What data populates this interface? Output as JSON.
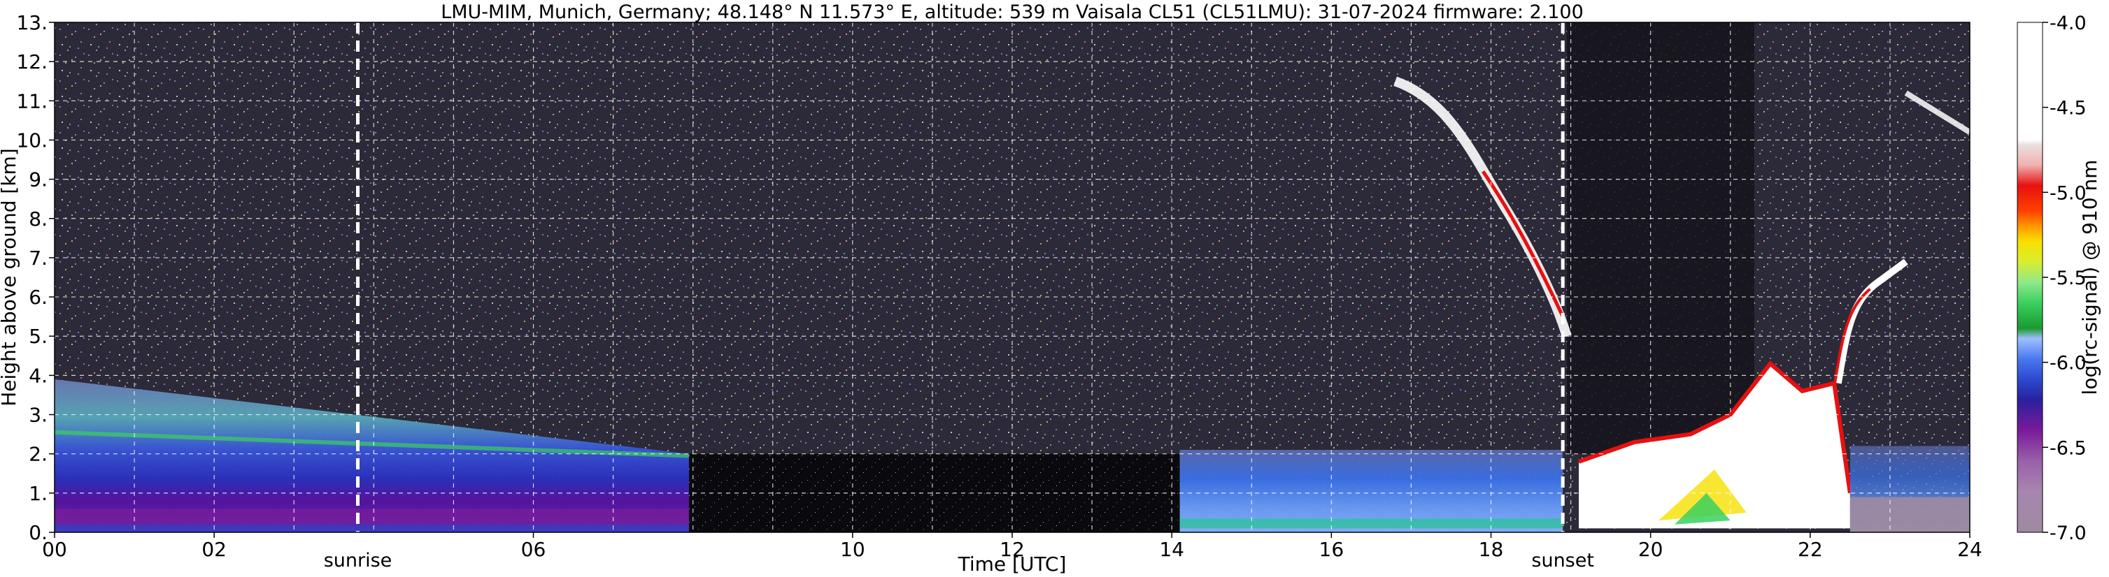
{
  "chart_data": {
    "type": "heatmap",
    "title": "LMU-MIM, Munich, Germany; 48.148° N 11.573° E, altitude: 539 m    Vaisala CL51 (CL51LMU): 31-07-2024    firmware: 2.100",
    "xlabel": "Time [UTC]",
    "ylabel": "Height above ground [km]",
    "xlim": [
      0,
      24
    ],
    "ylim": [
      0,
      13
    ],
    "grid": true,
    "x_ticks": [
      {
        "value": 0,
        "label": "00"
      },
      {
        "value": 2,
        "label": "02"
      },
      {
        "value": 6,
        "label": "06"
      },
      {
        "value": 10,
        "label": "10"
      },
      {
        "value": 12,
        "label": "12"
      },
      {
        "value": 14,
        "label": "14"
      },
      {
        "value": 16,
        "label": "16"
      },
      {
        "value": 18,
        "label": "18"
      },
      {
        "value": 20,
        "label": "20"
      },
      {
        "value": 22,
        "label": "22"
      },
      {
        "value": 24,
        "label": "24"
      }
    ],
    "y_ticks": [
      {
        "value": 0,
        "label": "0."
      },
      {
        "value": 1,
        "label": "1."
      },
      {
        "value": 2,
        "label": "2."
      },
      {
        "value": 3,
        "label": "3."
      },
      {
        "value": 4,
        "label": "4."
      },
      {
        "value": 5,
        "label": "5."
      },
      {
        "value": 6,
        "label": "6."
      },
      {
        "value": 7,
        "label": "7."
      },
      {
        "value": 8,
        "label": "8."
      },
      {
        "value": 9,
        "label": "9."
      },
      {
        "value": 10,
        "label": "10."
      },
      {
        "value": 11,
        "label": "11."
      },
      {
        "value": 12,
        "label": "12."
      },
      {
        "value": 13,
        "label": "13."
      }
    ],
    "markers": [
      {
        "label": "sunrise",
        "x": 3.8
      },
      {
        "label": "sunset",
        "x": 18.9
      }
    ],
    "colorbar": {
      "label": "log(rc-signal) @ 910 nm",
      "range": [
        -7.0,
        -4.0
      ],
      "ticks": [
        "-4.0",
        "-4.5",
        "-5.0",
        "-5.5",
        "-6.0",
        "-6.5",
        "-7.0"
      ],
      "tick_values": [
        -4.0,
        -4.5,
        -5.0,
        -5.5,
        -6.0,
        -6.5,
        -7.0
      ],
      "colors": [
        "#9f8aa0",
        "#a886b0",
        "#9a60a8",
        "#7a1a9a",
        "#5a0a8a",
        "#2a20a0",
        "#2c4ad0",
        "#4a78f0",
        "#70a0ff",
        "#9ec0ff",
        "#1a9a30",
        "#3ad060",
        "#90e88a",
        "#d8ee30",
        "#f8e000",
        "#ff9800",
        "#ff4000",
        "#e81010",
        "#f0b0b0",
        "#ece0e0",
        "#ffffff"
      ]
    },
    "features": [
      {
        "name": "signal gap (black)",
        "t_start": 7.95,
        "t_end": 14.1,
        "height_top": 2.0
      },
      {
        "name": "boundary layer aerosol",
        "t_start": 0,
        "t_end": 7.95,
        "height_top": 3.9
      },
      {
        "name": "descending cirrus",
        "t_start": 16.8,
        "t_end": 18.9,
        "height_top": 11.5,
        "height_bottom": 5.0
      },
      {
        "name": "low cloud",
        "t_start": 19.1,
        "t_end": 22.5,
        "height_top": 4.3
      }
    ],
    "colors": {
      "background": "#ffffff",
      "noise_bg": "#2c2a38",
      "grid": "#ffffff",
      "marker": "#ffffff"
    }
  }
}
